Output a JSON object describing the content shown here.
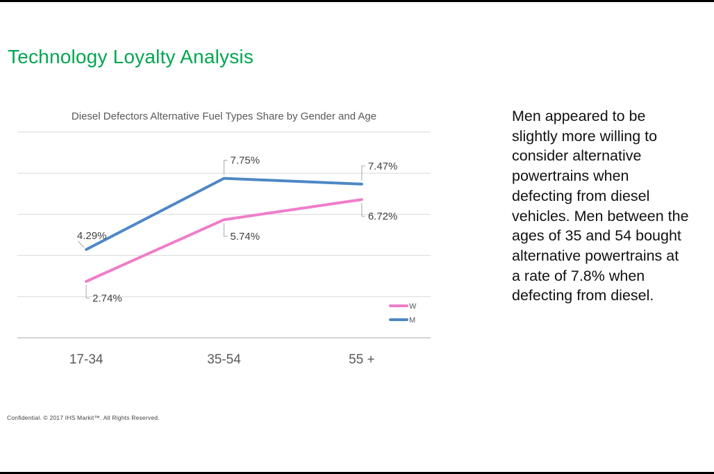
{
  "page": {
    "title": "Technology Loyalty Analysis",
    "title_color": "#00a651",
    "commentary": "Men appeared to be\nslightly more willing to\nconsider alternative\npowertrains when\ndefecting from diesel\nvehicles. Men between the\nages of 35 and 54 bought\nalternative powertrains at\na rate of 7.8% when\ndefecting from diesel.",
    "footer": "Confidential. © 2017 IHS Markit™. All Rights Reserved."
  },
  "chart_data": {
    "type": "line",
    "title": "Diesel Defectors Alternative Fuel Types Share by Gender and Age",
    "categories": [
      "17-34",
      "35-54",
      "55 +"
    ],
    "series": [
      {
        "name": "W",
        "color": "#ef7dc9",
        "values": [
          2.74,
          5.74,
          6.72
        ],
        "label_pos": [
          "below",
          "below",
          "below"
        ]
      },
      {
        "name": "M",
        "color": "#4e87c4",
        "values": [
          4.29,
          7.75,
          7.47
        ],
        "label_pos": [
          "left",
          "above",
          "above"
        ]
      }
    ],
    "value_suffix": "%",
    "ylim": [
      0,
      10
    ],
    "grid_step": 2,
    "grid": true,
    "xlabel": "",
    "ylabel": "",
    "legend_position": "bottom-right",
    "colors": {
      "gridline": "#d9d9d9",
      "axis_line": "#a6a6a6",
      "leader_line": "#a6a6a6",
      "data_label": "#404040",
      "category_label": "#595959",
      "legend_label": "#595959",
      "chart_title": "#595959"
    }
  }
}
